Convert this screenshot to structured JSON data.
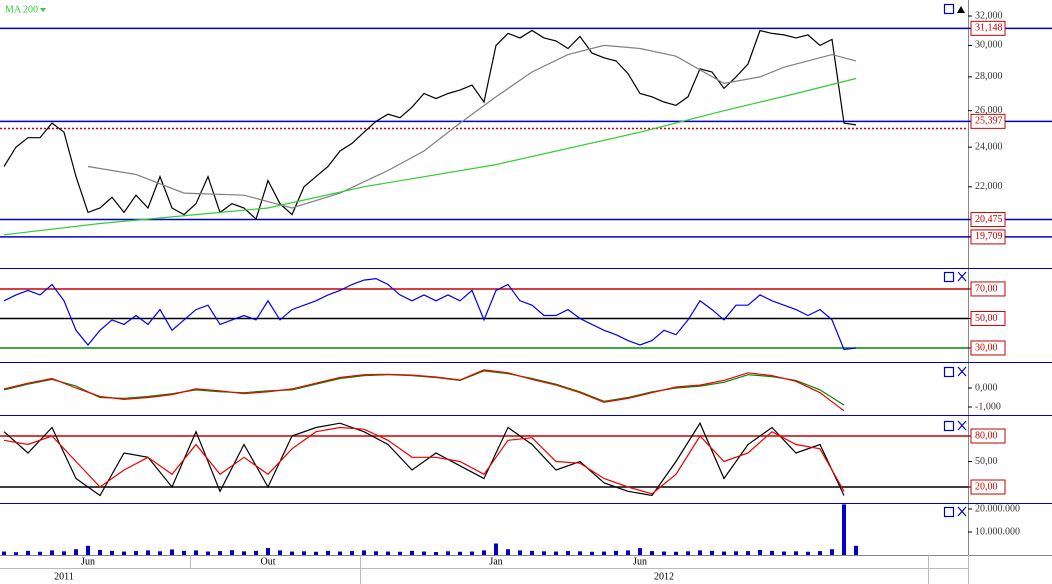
{
  "chart_data": [
    {
      "type": "line",
      "log": true,
      "ylim": [
        18410,
        33145
      ],
      "yticks": [
        {
          "value": 22000,
          "label": "22,000"
        },
        {
          "value": 24000,
          "label": "24,000"
        },
        {
          "value": 26000,
          "label": "26,000"
        },
        {
          "value": 28000,
          "label": "28,000"
        },
        {
          "value": 30000,
          "label": "30,000"
        },
        {
          "value": 32000,
          "label": "32,000"
        }
      ],
      "levels": {
        "values": [
          31148,
          25397,
          20475,
          19709
        ],
        "value_labels": [
          "31,148",
          "25,397",
          "20,475",
          "19,709"
        ],
        "color": "#0000cc"
      },
      "dotted_level": {
        "value": 25000,
        "color": "#cc0000"
      },
      "series": [
        {
          "color": "#000000",
          "values": [
            23000,
            24000,
            24500,
            24500,
            25300,
            24800,
            22500,
            20800,
            21000,
            21500,
            20800,
            21600,
            21000,
            22500,
            21000,
            20700,
            21200,
            22500,
            20800,
            21200,
            21000,
            20500,
            22300,
            21200,
            20700,
            22000,
            22500,
            23000,
            23800,
            24200,
            24800,
            25400,
            25800,
            25600,
            26200,
            27000,
            26700,
            27000,
            27200,
            27500,
            26500,
            30000,
            30800,
            30500,
            31000,
            30500,
            30300,
            29800,
            30600,
            29500,
            29200,
            29000,
            28200,
            27000,
            26800,
            26500,
            26300,
            26800,
            28500,
            28300,
            27300,
            28000,
            28800,
            31000,
            30800,
            30700,
            30500,
            30700,
            30000,
            30400,
            25300,
            25200
          ]
        },
        {
          "color": "#808080",
          "x": [
            7,
            11,
            15,
            20,
            24,
            28,
            32,
            35,
            38,
            41,
            44,
            47,
            50,
            53,
            56,
            60,
            63,
            65,
            69,
            71
          ],
          "values": [
            23000,
            22600,
            21700,
            21600,
            21000,
            21700,
            22800,
            23800,
            25300,
            26800,
            28300,
            29400,
            30000,
            29800,
            29300,
            27600,
            28000,
            28600,
            29400,
            29000
          ]
        },
        {
          "name": "MA 200",
          "color": "#33cc33",
          "x": [
            0,
            8,
            16,
            22,
            30,
            41,
            53,
            60,
            66,
            71
          ],
          "values": [
            19800,
            20300,
            20700,
            21000,
            22000,
            23100,
            24800,
            26000,
            27000,
            27900
          ]
        }
      ]
    },
    {
      "type": "line",
      "ylim": [
        20.5,
        84.2
      ],
      "yticks": [
        {
          "value": 30,
          "label": "30,00"
        },
        {
          "value": 50,
          "label": "50,00"
        },
        {
          "value": 70,
          "label": "70,00"
        }
      ],
      "level_colors": [
        "#008800",
        "#000000",
        "#cc0000"
      ],
      "series": [
        {
          "color": "#0000ee",
          "values": [
            62,
            66,
            69,
            66,
            73,
            62,
            42,
            32,
            42,
            49,
            46,
            52,
            46,
            56,
            42,
            49,
            56,
            59,
            46,
            49,
            52,
            49,
            62,
            49,
            56,
            59,
            62,
            66,
            69,
            73,
            76,
            77,
            73,
            66,
            62,
            66,
            62,
            66,
            62,
            69,
            49,
            69,
            73,
            62,
            59,
            52,
            52,
            56,
            50,
            46,
            42,
            39,
            35,
            32,
            35,
            42,
            39,
            49,
            62,
            56,
            49,
            59,
            59,
            66,
            62,
            59,
            56,
            52,
            56,
            49,
            29,
            30
          ]
        }
      ]
    },
    {
      "type": "line",
      "ylim": [
        -1421,
        1368
      ],
      "yticks": [
        {
          "value": -1000,
          "label": "-1,000"
        },
        {
          "value": 0,
          "label": "0,000"
        }
      ],
      "x": [
        0,
        2,
        4,
        6,
        8,
        10,
        12,
        14,
        16,
        18,
        20,
        22,
        24,
        26,
        28,
        30,
        32,
        34,
        36,
        38,
        40,
        42,
        44,
        46,
        48,
        50,
        52,
        54,
        56,
        58,
        60,
        62,
        64,
        66,
        68,
        70
      ],
      "series": [
        {
          "color": "#008800",
          "values": [
            -100,
            200,
            450,
            100,
            -500,
            -550,
            -450,
            -300,
            -100,
            -200,
            -250,
            -150,
            -100,
            200,
            500,
            650,
            700,
            650,
            550,
            400,
            900,
            750,
            500,
            200,
            -200,
            -700,
            -500,
            -200,
            0,
            100,
            300,
            700,
            600,
            400,
            -100,
            -900
          ]
        },
        {
          "color": "#ee0000",
          "values": [
            -50,
            250,
            500,
            0,
            -450,
            -600,
            -500,
            -350,
            -50,
            -150,
            -300,
            -200,
            -50,
            250,
            550,
            700,
            720,
            680,
            580,
            420,
            950,
            800,
            450,
            150,
            -250,
            -750,
            -550,
            -250,
            50,
            150,
            400,
            800,
            650,
            350,
            -250,
            -1200
          ]
        }
      ]
    },
    {
      "type": "line",
      "ylim": [
        1.2,
        104.7
      ],
      "yticks": [
        {
          "value": 20,
          "label": "20,00"
        },
        {
          "value": 50,
          "label": "50,00"
        },
        {
          "value": 80,
          "label": "80,00"
        }
      ],
      "level_colors": [
        "#000000",
        null,
        "#cc0000"
      ],
      "x": [
        0,
        2,
        4,
        6,
        8,
        10,
        12,
        14,
        16,
        18,
        20,
        22,
        24,
        26,
        28,
        30,
        32,
        34,
        36,
        38,
        40,
        42,
        44,
        46,
        48,
        50,
        52,
        54,
        56,
        58,
        60,
        62,
        64,
        66,
        68,
        70
      ],
      "series": [
        {
          "color": "#000000",
          "values": [
            85,
            60,
            90,
            30,
            10,
            60,
            55,
            20,
            85,
            15,
            70,
            20,
            80,
            90,
            95,
            85,
            70,
            40,
            60,
            45,
            30,
            90,
            70,
            40,
            50,
            25,
            15,
            10,
            50,
            95,
            30,
            70,
            90,
            60,
            70,
            10
          ]
        },
        {
          "color": "#ee0000",
          "values": [
            75,
            70,
            80,
            50,
            20,
            40,
            55,
            35,
            70,
            35,
            55,
            35,
            65,
            85,
            90,
            88,
            75,
            55,
            55,
            50,
            35,
            75,
            78,
            50,
            48,
            30,
            20,
            12,
            35,
            80,
            50,
            60,
            85,
            70,
            65,
            15
          ]
        }
      ]
    },
    {
      "type": "bar",
      "ylim": [
        0,
        22600000
      ],
      "color": "#0000cc",
      "yticks": [
        {
          "value": 10000000,
          "label": "10.000.000"
        },
        {
          "value": 20000000,
          "label": "20.000.000"
        }
      ],
      "values": [
        1500000,
        1200000,
        1800000,
        1400000,
        2000000,
        1600000,
        2500000,
        4000000,
        2200000,
        1800000,
        1500000,
        1700000,
        2000000,
        1600000,
        2400000,
        1800000,
        2000000,
        1500000,
        1700000,
        2100000,
        1600000,
        1800000,
        3000000,
        2000000,
        1500000,
        1600000,
        1400000,
        1800000,
        1500000,
        1700000,
        2000000,
        1600000,
        1500000,
        1400000,
        1800000,
        1500000,
        1300000,
        1600000,
        1400000,
        1500000,
        2000000,
        5000000,
        2500000,
        2000000,
        1800000,
        1600000,
        1500000,
        1700000,
        1600000,
        1400000,
        1500000,
        1800000,
        2000000,
        3000000,
        1700000,
        1500000,
        1400000,
        1600000,
        2000000,
        1800000,
        1500000,
        1600000,
        1700000,
        2200000,
        1800000,
        1500000,
        1600000,
        1400000,
        1700000,
        2500000,
        22000000,
        4000000
      ],
      "categories": [
        null,
        null,
        null,
        null,
        null,
        null,
        null,
        "Jun",
        null,
        null,
        null,
        null,
        null,
        null,
        null,
        null,
        null,
        null,
        null,
        null,
        null,
        null,
        "Out",
        null,
        null,
        null,
        null,
        null,
        null,
        null,
        null,
        null,
        null,
        null,
        null,
        null,
        null,
        null,
        null,
        null,
        null,
        "Jan",
        null,
        null,
        null,
        null,
        null,
        null,
        null,
        null,
        null,
        null,
        null,
        "Jun",
        null,
        null,
        null,
        null,
        null,
        null,
        null,
        null,
        null,
        null,
        null,
        null,
        null,
        null,
        null,
        null,
        null,
        null
      ],
      "years": [
        null,
        null,
        null,
        null,
        null,
        "2011",
        null,
        null,
        null,
        null,
        null,
        null,
        null,
        null,
        null,
        null,
        null,
        null,
        null,
        null,
        null,
        null,
        null,
        null,
        null,
        null,
        null,
        null,
        null,
        null,
        null,
        null,
        null,
        null,
        null,
        null,
        null,
        null,
        null,
        null,
        null,
        null,
        null,
        null,
        null,
        null,
        null,
        null,
        null,
        null,
        null,
        null,
        null,
        null,
        null,
        "2012",
        null,
        null,
        null,
        null,
        null,
        null,
        null,
        null,
        null,
        null,
        null,
        null,
        null,
        null,
        null,
        null
      ]
    }
  ]
}
